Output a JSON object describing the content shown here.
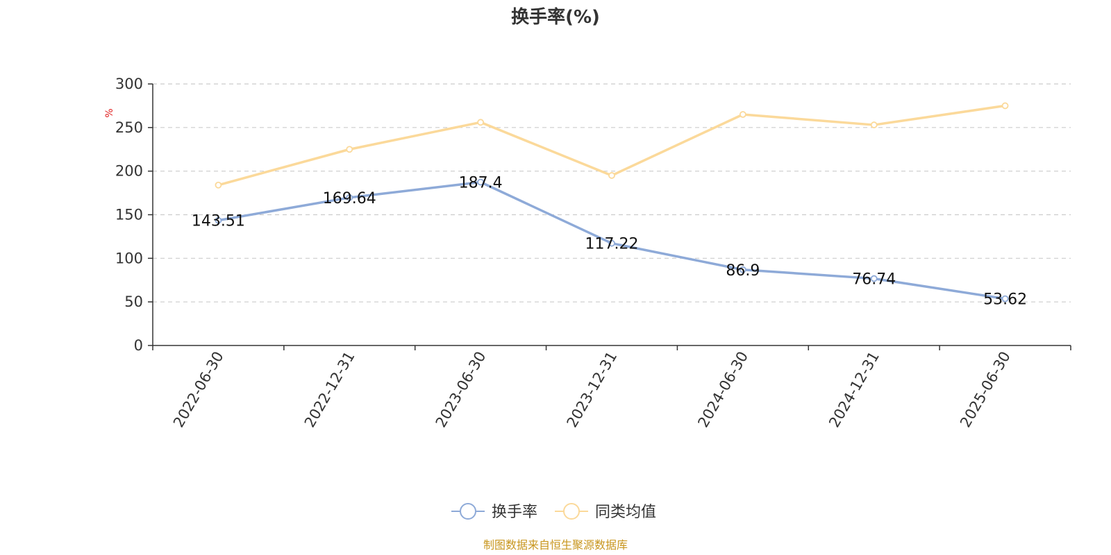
{
  "chart_data": {
    "type": "line",
    "title": "换手率(%)",
    "ylabel": "%",
    "xlabel": "",
    "categories": [
      "2022-06-30",
      "2022-12-31",
      "2023-06-30",
      "2023-12-31",
      "2024-06-30",
      "2024-12-31",
      "2025-06-30"
    ],
    "ylim": [
      0,
      300
    ],
    "yticks": [
      0,
      50,
      100,
      150,
      200,
      250,
      300
    ],
    "grid": true,
    "legend_position": "bottom-center",
    "series": [
      {
        "name": "换手率",
        "color": "#8eaad8",
        "values": [
          143.51,
          169.64,
          187.4,
          117.22,
          86.9,
          76.74,
          53.62
        ],
        "data_labels": [
          "143.51",
          "169.64",
          "187.4",
          "117.22",
          "86.9",
          "76.74",
          "53.62"
        ]
      },
      {
        "name": "同类均值",
        "color": "#fbd99a",
        "values": [
          184,
          225,
          256,
          195,
          265,
          253,
          275
        ]
      }
    ]
  },
  "colors": {
    "axis": "#333333",
    "grid": "#cccccc",
    "unit_label": "#e02020",
    "source_text": "#c8961e"
  },
  "source_note": "制图数据来自恒生聚源数据库"
}
